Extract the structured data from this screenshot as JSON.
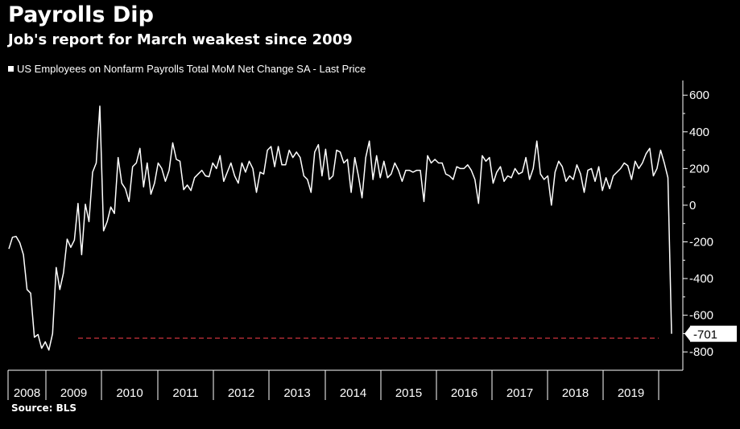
{
  "chart_data": {
    "type": "line",
    "title": "Payrolls Dip",
    "subtitle": "Job's report for March weakest since 2009",
    "source": "Source: BLS",
    "series": [
      {
        "name": "US Employees on Nonfarm Payrolls Total MoM Net Change SA - Last Price",
        "color": "#ffffff",
        "values": [
          -238,
          -175,
          -170,
          -205,
          -270,
          -460,
          -480,
          -720,
          -705,
          -780,
          -745,
          -790,
          -700,
          -340,
          -460,
          -370,
          -185,
          -230,
          -190,
          10,
          -270,
          5,
          -90,
          180,
          230,
          540,
          -140,
          -90,
          -10,
          -45,
          260,
          120,
          90,
          20,
          210,
          230,
          310,
          100,
          230,
          60,
          120,
          230,
          200,
          130,
          190,
          340,
          250,
          240,
          85,
          110,
          80,
          150,
          170,
          190,
          160,
          155,
          230,
          200,
          270,
          130,
          180,
          230,
          160,
          120,
          230,
          180,
          240,
          200,
          70,
          180,
          170,
          300,
          320,
          210,
          320,
          220,
          220,
          300,
          260,
          290,
          260,
          160,
          140,
          70,
          290,
          330,
          160,
          305,
          140,
          160,
          300,
          290,
          230,
          250,
          70,
          260,
          160,
          40,
          260,
          350,
          140,
          270,
          150,
          240,
          150,
          170,
          230,
          190,
          130,
          190,
          190,
          180,
          190,
          190,
          20,
          270,
          230,
          250,
          230,
          230,
          170,
          160,
          140,
          210,
          200,
          200,
          220,
          190,
          140,
          10,
          270,
          240,
          260,
          120,
          180,
          210,
          130,
          160,
          150,
          200,
          170,
          180,
          260,
          140,
          200,
          350,
          170,
          140,
          160,
          0,
          180,
          240,
          210,
          130,
          160,
          140,
          220,
          170,
          70,
          190,
          200,
          130,
          210,
          80,
          150,
          90,
          160,
          180,
          200,
          230,
          215,
          140,
          240,
          200,
          230,
          280,
          310,
          160,
          200,
          300,
          230,
          150,
          -701
        ]
      }
    ],
    "last_value_label": "-701",
    "reference_line": {
      "value": -725,
      "color": "#c8323c",
      "style": "dashed"
    },
    "xlabel": "",
    "ylabel": "",
    "ylim": [
      -900,
      680
    ],
    "y_ticks": [
      -800,
      -600,
      -400,
      -200,
      0,
      200,
      400,
      600
    ],
    "x_tick_labels": [
      "2008",
      "2009",
      "2010",
      "2011",
      "2012",
      "2013",
      "2014",
      "2015",
      "2016",
      "2017",
      "2018",
      "2019"
    ],
    "y_axis_position": "right",
    "grid": false,
    "legend_position": "top-left"
  }
}
